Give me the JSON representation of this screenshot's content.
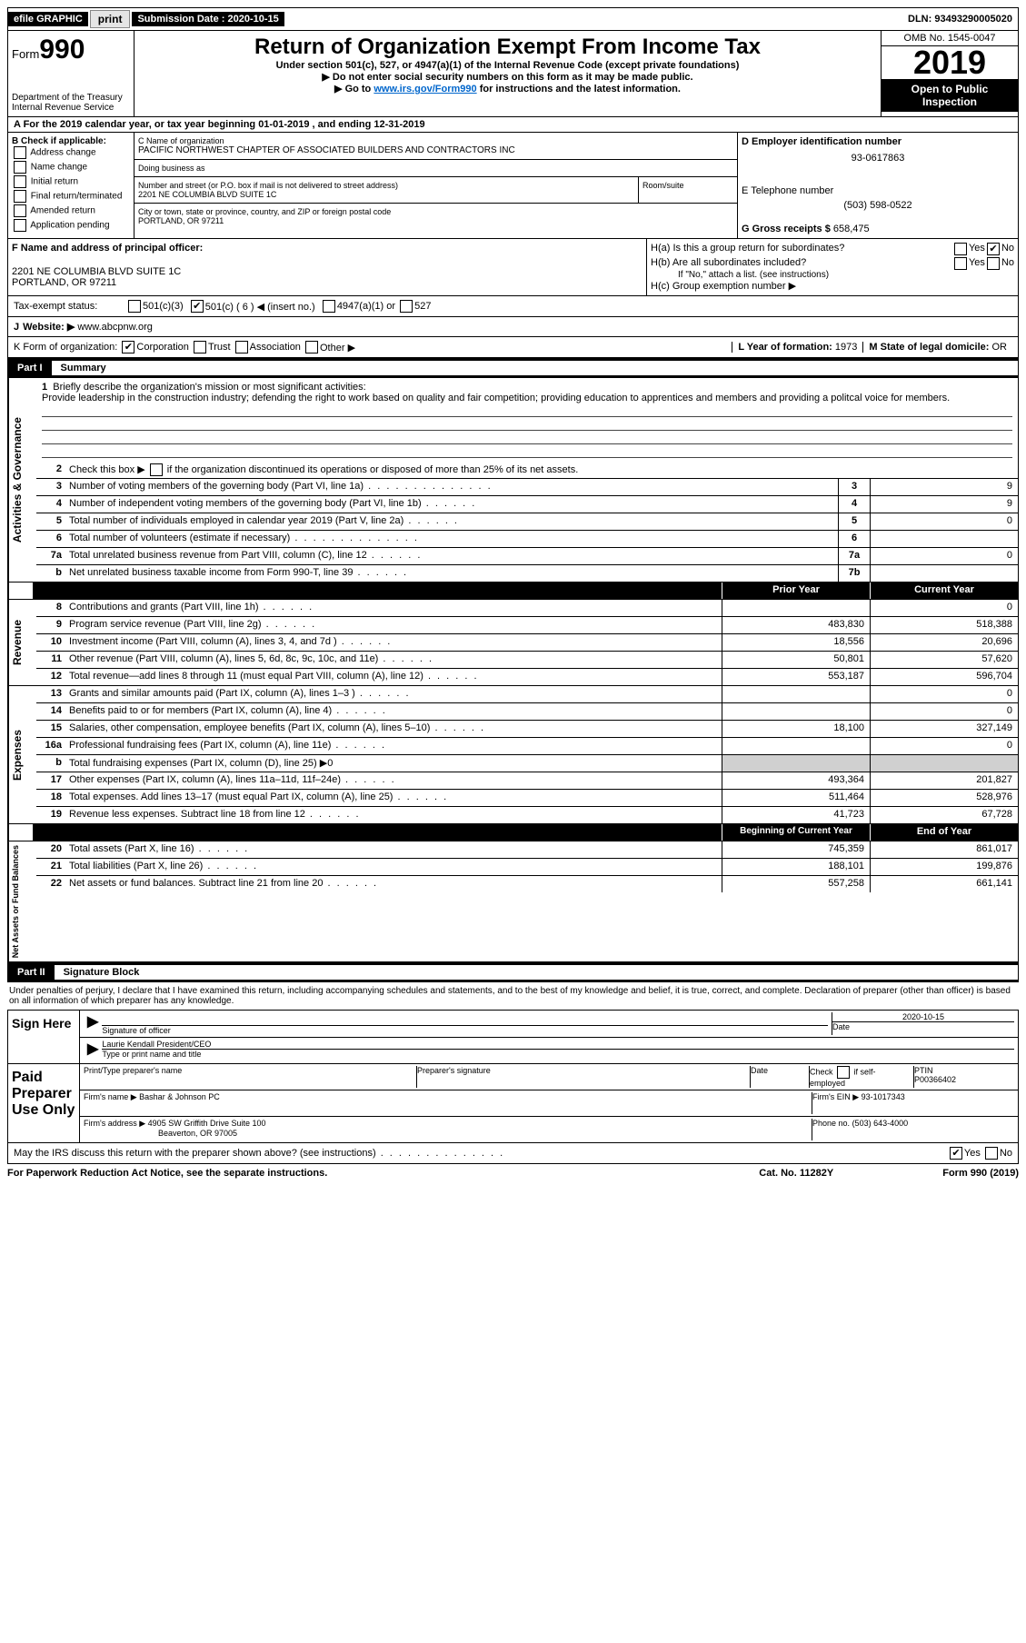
{
  "topbar": {
    "efile_label": "efile GRAPHIC",
    "print_btn": "print",
    "sub_date_label": "Submission Date : 2020-10-15",
    "dln_label": "DLN: 93493290005020"
  },
  "header": {
    "form_label": "Form",
    "form_num": "990",
    "dept": "Department of the Treasury\nInternal Revenue Service",
    "title": "Return of Organization Exempt From Income Tax",
    "sub1": "Under section 501(c), 527, or 4947(a)(1) of the Internal Revenue Code (except private foundations)",
    "sub2": "▶ Do not enter social security numbers on this form as it may be made public.",
    "sub3_pre": "▶ Go to ",
    "sub3_link": "www.irs.gov/Form990",
    "sub3_post": " for instructions and the latest information.",
    "omb": "OMB No. 1545-0047",
    "year": "2019",
    "inspect1": "Open to Public",
    "inspect2": "Inspection"
  },
  "period": "A   For the 2019 calendar year, or tax year beginning 01-01-2019     , and ending 12-31-2019",
  "block_b": {
    "title": "B Check if applicable:",
    "items": [
      "Address change",
      "Name change",
      "Initial return",
      "Final return/terminated",
      "Amended return",
      "Application pending"
    ]
  },
  "block_c": {
    "name_lbl": "C Name of organization",
    "name": "PACIFIC NORTHWEST CHAPTER OF ASSOCIATED BUILDERS AND CONTRACTORS INC",
    "dba_lbl": "Doing business as",
    "addr_lbl": "Number and street (or P.O. box if mail is not delivered to street address)",
    "addr": "2201 NE COLUMBIA BLVD SUITE 1C",
    "room_lbl": "Room/suite",
    "city_lbl": "City or town, state or province, country, and ZIP or foreign postal code",
    "city": "PORTLAND, OR  97211"
  },
  "block_d": {
    "lbl": "D Employer identification number",
    "val": "93-0617863"
  },
  "block_e": {
    "lbl": "E Telephone number",
    "val": "(503) 598-0522"
  },
  "block_g": {
    "lbl": "G Gross receipts $",
    "val": "658,475"
  },
  "block_f": {
    "lbl": "F  Name and address of principal officer:",
    "addr1": "2201 NE COLUMBIA BLVD SUITE 1C",
    "addr2": "PORTLAND, OR  97211"
  },
  "block_h": {
    "ha": "H(a)  Is this a group return for subordinates?",
    "hb": "H(b)  Are all subordinates included?",
    "hb_note": "If \"No,\" attach a list. (see instructions)",
    "hc": "H(c)  Group exemption number ▶",
    "yes": "Yes",
    "no": "No"
  },
  "block_i": {
    "lbl": "Tax-exempt status:",
    "opts": [
      "501(c)(3)",
      "501(c) ( 6 ) ◀ (insert no.)",
      "4947(a)(1) or",
      "527"
    ]
  },
  "block_j": {
    "lbl": "J",
    "website_lbl": "Website: ▶",
    "val": "www.abcpnw.org"
  },
  "block_k": {
    "lbl": "K Form of organization:",
    "opts": [
      "Corporation",
      "Trust",
      "Association",
      "Other ▶"
    ]
  },
  "block_l": {
    "lbl": "L Year of formation:",
    "val": "1973"
  },
  "block_m": {
    "lbl": "M State of legal domicile:",
    "val": "OR"
  },
  "part1": {
    "tab": "Part I",
    "title": "Summary"
  },
  "mission": {
    "num": "1",
    "lbl": "Briefly describe the organization's mission or most significant activities:",
    "text": "Provide leadership in the construction industry; defending the right to work based on quality and fair competition; providing education to apprentices and members and providing a politcal voice for members."
  },
  "activities": {
    "side": "Activities & Governance",
    "rows": [
      {
        "n": "2",
        "d": "Check this box ▶       if the organization discontinued its operations or disposed of more than 25% of its net assets.",
        "nc": "",
        "v": ""
      },
      {
        "n": "3",
        "d": "Number of voting members of the governing body (Part VI, line 1a)",
        "nc": "3",
        "v": "9"
      },
      {
        "n": "4",
        "d": "Number of independent voting members of the governing body (Part VI, line 1b)",
        "nc": "4",
        "v": "9"
      },
      {
        "n": "5",
        "d": "Total number of individuals employed in calendar year 2019 (Part V, line 2a)",
        "nc": "5",
        "v": "0"
      },
      {
        "n": "6",
        "d": "Total number of volunteers (estimate if necessary)",
        "nc": "6",
        "v": ""
      },
      {
        "n": "7a",
        "d": "Total unrelated business revenue from Part VIII, column (C), line 12",
        "nc": "7a",
        "v": "0"
      },
      {
        "n": "b",
        "d": "Net unrelated business taxable income from Form 990-T, line 39",
        "nc": "7b",
        "v": ""
      }
    ]
  },
  "fin_header": {
    "prior": "Prior Year",
    "current": "Current Year"
  },
  "revenue": {
    "side": "Revenue",
    "rows": [
      {
        "n": "8",
        "d": "Contributions and grants (Part VIII, line 1h)",
        "p": "",
        "c": "0"
      },
      {
        "n": "9",
        "d": "Program service revenue (Part VIII, line 2g)",
        "p": "483,830",
        "c": "518,388"
      },
      {
        "n": "10",
        "d": "Investment income (Part VIII, column (A), lines 3, 4, and 7d )",
        "p": "18,556",
        "c": "20,696"
      },
      {
        "n": "11",
        "d": "Other revenue (Part VIII, column (A), lines 5, 6d, 8c, 9c, 10c, and 11e)",
        "p": "50,801",
        "c": "57,620"
      },
      {
        "n": "12",
        "d": "Total revenue—add lines 8 through 11 (must equal Part VIII, column (A), line 12)",
        "p": "553,187",
        "c": "596,704"
      }
    ]
  },
  "expenses": {
    "side": "Expenses",
    "rows": [
      {
        "n": "13",
        "d": "Grants and similar amounts paid (Part IX, column (A), lines 1–3 )",
        "p": "",
        "c": "0"
      },
      {
        "n": "14",
        "d": "Benefits paid to or for members (Part IX, column (A), line 4)",
        "p": "",
        "c": "0"
      },
      {
        "n": "15",
        "d": "Salaries, other compensation, employee benefits (Part IX, column (A), lines 5–10)",
        "p": "18,100",
        "c": "327,149"
      },
      {
        "n": "16a",
        "d": "Professional fundraising fees (Part IX, column (A), line 11e)",
        "p": "",
        "c": "0"
      },
      {
        "n": "b",
        "d": "Total fundraising expenses (Part IX, column (D), line 25) ▶0",
        "p": "SHADED",
        "c": "SHADED"
      },
      {
        "n": "17",
        "d": "Other expenses (Part IX, column (A), lines 11a–11d, 11f–24e)",
        "p": "493,364",
        "c": "201,827"
      },
      {
        "n": "18",
        "d": "Total expenses. Add lines 13–17 (must equal Part IX, column (A), line 25)",
        "p": "511,464",
        "c": "528,976"
      },
      {
        "n": "19",
        "d": "Revenue less expenses. Subtract line 18 from line 12",
        "p": "41,723",
        "c": "67,728"
      }
    ]
  },
  "net_header": {
    "begin": "Beginning of Current Year",
    "end": "End of Year"
  },
  "net": {
    "side": "Net Assets or Fund Balances",
    "rows": [
      {
        "n": "20",
        "d": "Total assets (Part X, line 16)",
        "p": "745,359",
        "c": "861,017"
      },
      {
        "n": "21",
        "d": "Total liabilities (Part X, line 26)",
        "p": "188,101",
        "c": "199,876"
      },
      {
        "n": "22",
        "d": "Net assets or fund balances. Subtract line 21 from line 20",
        "p": "557,258",
        "c": "661,141"
      }
    ]
  },
  "part2": {
    "tab": "Part II",
    "title": "Signature Block"
  },
  "penalty": "Under penalties of perjury, I declare that I have examined this return, including accompanying schedules and statements, and to the best of my knowledge and belief, it is true, correct, and complete. Declaration of preparer (other than officer) is based on all information of which preparer has any knowledge.",
  "sign_here": {
    "lbl": "Sign Here",
    "sig_lbl": "Signature of officer",
    "date_lbl": "Date",
    "date_val": "2020-10-15",
    "name": "Laurie Kendall  President/CEO",
    "name_lbl": "Type or print name and title"
  },
  "paid_prep": {
    "lbl": "Paid Preparer Use Only",
    "pt_name_lbl": "Print/Type preparer's name",
    "ps_lbl": "Preparer's signature",
    "date_lbl": "Date",
    "check_lbl": "Check         if self-employed",
    "ptin_lbl": "PTIN",
    "ptin_val": "P00366402",
    "firm_name_lbl": "Firm's name    ▶",
    "firm_name": "Bashar & Johnson PC",
    "firm_ein_lbl": "Firm's EIN ▶",
    "firm_ein": "93-1017343",
    "firm_addr_lbl": "Firm's address ▶",
    "firm_addr1": "4905 SW Griffith Drive Suite 100",
    "firm_addr2": "Beaverton, OR  97005",
    "phone_lbl": "Phone no.",
    "phone": "(503) 643-4000"
  },
  "discuss": {
    "q": "May the IRS discuss this return with the preparer shown above? (see instructions)",
    "yes": "Yes",
    "no": "No"
  },
  "footer": {
    "f1": "For Paperwork Reduction Act Notice, see the separate instructions.",
    "f2": "Cat. No. 11282Y",
    "f3": "Form 990 (2019)"
  }
}
